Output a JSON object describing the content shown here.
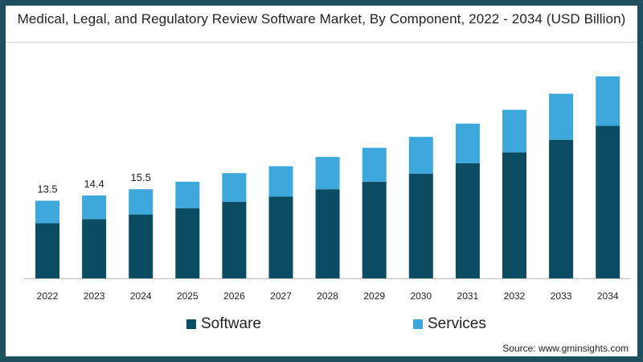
{
  "chart_data": {
    "type": "bar",
    "stacked": true,
    "title": "Medical, Legal, and Regulatory Review Software Market, By Component, 2022 - 2034 (USD Billion)",
    "xlabel": "",
    "ylabel": "",
    "ylim": [
      0,
      40
    ],
    "grid": false,
    "legend_position": "bottom",
    "categories": [
      "2022",
      "2023",
      "2024",
      "2025",
      "2026",
      "2027",
      "2028",
      "2029",
      "2030",
      "2031",
      "2032",
      "2033",
      "2034"
    ],
    "series": [
      {
        "name": "Software",
        "color": "#0b4c63",
        "values": [
          9.6,
          10.3,
          11.1,
          12.2,
          13.3,
          14.2,
          15.5,
          16.8,
          18.2,
          20.0,
          21.9,
          24.1,
          26.5
        ]
      },
      {
        "name": "Services",
        "color": "#3ea8dc",
        "values": [
          3.9,
          4.1,
          4.4,
          4.6,
          5.0,
          5.3,
          5.6,
          5.9,
          6.4,
          6.9,
          7.4,
          8.0,
          8.6
        ]
      }
    ],
    "data_labels": [
      {
        "category": "2022",
        "text": "13.5"
      },
      {
        "category": "2023",
        "text": "14.4"
      },
      {
        "category": "2024",
        "text": "15.5"
      }
    ]
  },
  "source": "Source: www.gminsights.com"
}
